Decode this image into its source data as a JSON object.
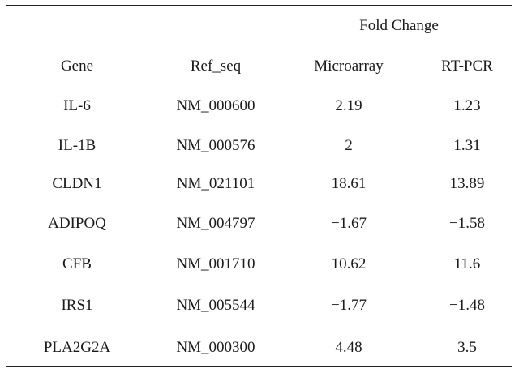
{
  "table": {
    "group_header": "Fold Change",
    "columns": [
      "Gene",
      "Ref_seq",
      "Microarray",
      "RT-PCR"
    ],
    "rows": [
      {
        "gene": "IL-6",
        "ref_seq": "NM_000600",
        "microarray": "2.19",
        "rt_pcr": "1.23"
      },
      {
        "gene": "IL-1B",
        "ref_seq": "NM_000576",
        "microarray": "2",
        "rt_pcr": "1.31"
      },
      {
        "gene": "CLDN1",
        "ref_seq": "NM_021101",
        "microarray": "18.61",
        "rt_pcr": "13.89"
      },
      {
        "gene": "ADIPOQ",
        "ref_seq": "NM_004797",
        "microarray": "−1.67",
        "rt_pcr": "−1.58"
      },
      {
        "gene": "CFB",
        "ref_seq": "NM_001710",
        "microarray": "10.62",
        "rt_pcr": "11.6"
      },
      {
        "gene": "IRS1",
        "ref_seq": "NM_005544",
        "microarray": "−1.77",
        "rt_pcr": "−1.48"
      },
      {
        "gene": "PLA2G2A",
        "ref_seq": "NM_000300",
        "microarray": "4.48",
        "rt_pcr": "3.5"
      }
    ]
  }
}
